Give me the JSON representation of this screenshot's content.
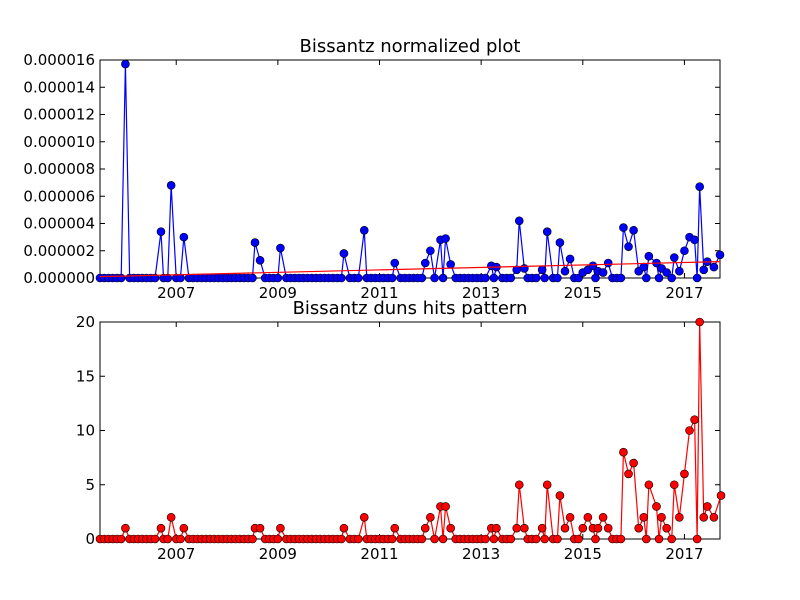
{
  "chart_data": [
    {
      "type": "line",
      "title": "Bissantz normalized plot",
      "xlabel": "",
      "ylabel": "",
      "x_ticks": [
        "2007",
        "2009",
        "2011",
        "2013",
        "2015",
        "2017"
      ],
      "y_ticks": [
        "0.000000",
        "0.000002",
        "0.000004",
        "0.000006",
        "0.000008",
        "0.000010",
        "0.000012",
        "0.000014",
        "0.000016"
      ],
      "xlim": [
        2005.5,
        2017.7
      ],
      "ylim": [
        0,
        1.6e-05
      ],
      "grid": false,
      "series": [
        {
          "color": "#0000ff",
          "marker": "circle",
          "values": [
            [
              2006.0,
              1.57e-05
            ],
            [
              2006.7,
              3.4e-06
            ],
            [
              2006.9,
              6.8e-06
            ],
            [
              2007.15,
              3e-06
            ],
            [
              2008.55,
              2.6e-06
            ],
            [
              2008.65,
              1.3e-06
            ],
            [
              2009.05,
              2.2e-06
            ],
            [
              2010.3,
              1.8e-06
            ],
            [
              2010.7,
              3.5e-06
            ],
            [
              2011.3,
              1.1e-06
            ],
            [
              2011.9,
              1.1e-06
            ],
            [
              2012.0,
              2e-06
            ],
            [
              2012.2,
              2.8e-06
            ],
            [
              2012.3,
              2.9e-06
            ],
            [
              2012.4,
              1e-06
            ],
            [
              2013.2,
              9e-07
            ],
            [
              2013.3,
              8e-07
            ],
            [
              2013.7,
              6e-07
            ],
            [
              2013.75,
              4.2e-06
            ],
            [
              2013.85,
              7e-07
            ],
            [
              2014.2,
              6e-07
            ],
            [
              2014.3,
              3.4e-06
            ],
            [
              2014.55,
              2.6e-06
            ],
            [
              2014.65,
              5e-07
            ],
            [
              2014.75,
              1.4e-06
            ],
            [
              2015.0,
              4e-07
            ],
            [
              2015.1,
              6e-07
            ],
            [
              2015.2,
              9e-07
            ],
            [
              2015.3,
              5e-07
            ],
            [
              2015.4,
              4e-07
            ],
            [
              2015.5,
              1.1e-06
            ],
            [
              2015.8,
              3.7e-06
            ],
            [
              2015.9,
              2.3e-06
            ],
            [
              2016.0,
              3.5e-06
            ],
            [
              2016.1,
              5e-07
            ],
            [
              2016.2,
              8e-07
            ],
            [
              2016.3,
              1.6e-06
            ],
            [
              2016.45,
              1.1e-06
            ],
            [
              2016.55,
              7e-07
            ],
            [
              2016.65,
              4e-07
            ],
            [
              2016.8,
              1.5e-06
            ],
            [
              2016.9,
              5e-07
            ],
            [
              2017.0,
              2e-06
            ],
            [
              2017.1,
              3e-06
            ],
            [
              2017.2,
              2.8e-06
            ],
            [
              2017.3,
              6.7e-06
            ],
            [
              2017.38,
              6e-07
            ],
            [
              2017.45,
              1.2e-06
            ],
            [
              2017.52,
              4e-07
            ],
            [
              2017.58,
              8e-07
            ],
            [
              2017.65,
              5e-07
            ],
            [
              2017.7,
              1.7e-06
            ]
          ]
        },
        {
          "color": "#ff0000",
          "marker": "none",
          "values": [
            [
              2005.5,
              1e-07
            ],
            [
              2017.7,
              1.2e-06
            ]
          ]
        }
      ]
    },
    {
      "type": "line",
      "title": "Bissantz duns hits pattern",
      "xlabel": "",
      "ylabel": "",
      "x_ticks": [
        "2007",
        "2009",
        "2011",
        "2013",
        "2015",
        "2017"
      ],
      "y_ticks": [
        "0",
        "5",
        "10",
        "15",
        "20"
      ],
      "xlim": [
        2005.5,
        2017.7
      ],
      "ylim": [
        0,
        20
      ],
      "grid": false,
      "series": [
        {
          "color": "#ff0000",
          "marker": "circle",
          "values": [
            [
              2006.0,
              1
            ],
            [
              2006.7,
              1
            ],
            [
              2006.9,
              2
            ],
            [
              2007.15,
              1
            ],
            [
              2008.55,
              1
            ],
            [
              2008.65,
              1
            ],
            [
              2009.05,
              1
            ],
            [
              2010.3,
              1
            ],
            [
              2010.7,
              2
            ],
            [
              2011.3,
              1
            ],
            [
              2011.9,
              1
            ],
            [
              2012.0,
              2
            ],
            [
              2012.2,
              3
            ],
            [
              2012.3,
              3
            ],
            [
              2012.4,
              1
            ],
            [
              2013.2,
              1
            ],
            [
              2013.3,
              1
            ],
            [
              2013.7,
              1
            ],
            [
              2013.75,
              5
            ],
            [
              2013.85,
              1
            ],
            [
              2014.2,
              1
            ],
            [
              2014.3,
              5
            ],
            [
              2014.55,
              4
            ],
            [
              2014.65,
              1
            ],
            [
              2014.75,
              2
            ],
            [
              2015.0,
              1
            ],
            [
              2015.1,
              2
            ],
            [
              2015.2,
              1
            ],
            [
              2015.3,
              1
            ],
            [
              2015.4,
              2
            ],
            [
              2015.5,
              1
            ],
            [
              2015.8,
              8
            ],
            [
              2015.9,
              6
            ],
            [
              2016.0,
              7
            ],
            [
              2016.1,
              1
            ],
            [
              2016.2,
              2
            ],
            [
              2016.3,
              5
            ],
            [
              2016.45,
              3
            ],
            [
              2016.55,
              2
            ],
            [
              2016.65,
              1
            ],
            [
              2016.8,
              5
            ],
            [
              2016.9,
              2
            ],
            [
              2017.0,
              6
            ],
            [
              2017.1,
              10
            ],
            [
              2017.2,
              11
            ],
            [
              2017.3,
              20
            ],
            [
              2017.38,
              2
            ],
            [
              2017.45,
              3
            ],
            [
              2017.52,
              1
            ],
            [
              2017.58,
              2
            ],
            [
              2017.65,
              1
            ],
            [
              2017.7,
              2
            ],
            [
              2017.72,
              4
            ]
          ]
        }
      ]
    }
  ]
}
